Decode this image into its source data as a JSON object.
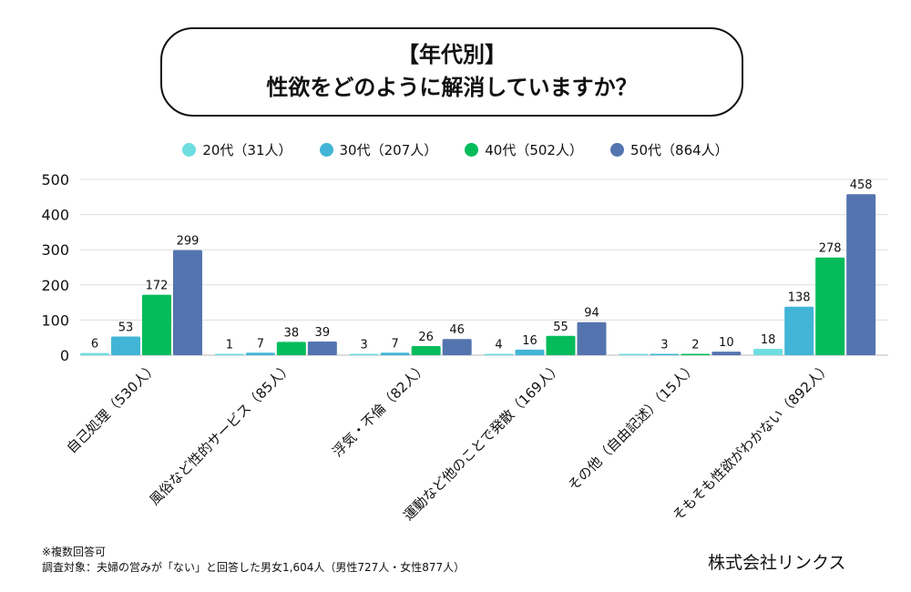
{
  "title": {
    "line1": "【年代別】",
    "line2": "性欲をどのように解消していますか？"
  },
  "chart_data": {
    "type": "bar",
    "categories": [
      "自己処理（530人）",
      "風俗など性的サービス（85人）",
      "浮気・不倫（82人）",
      "運動など他のことで発散（169人）",
      "その他（自由記述）（15人）",
      "そもそも性欲がわかない（892人）"
    ],
    "series": [
      {
        "name": "20代（31人）",
        "color": "#6fdde0",
        "values": [
          6,
          1,
          3,
          4,
          0,
          18
        ]
      },
      {
        "name": "30代（207人）",
        "color": "#42b5d6",
        "values": [
          53,
          7,
          7,
          16,
          3,
          138
        ]
      },
      {
        "name": "40代（502人）",
        "color": "#05bc5b",
        "values": [
          172,
          38,
          26,
          55,
          2,
          278
        ]
      },
      {
        "name": "50代（864人）",
        "color": "#5474af",
        "values": [
          299,
          39,
          46,
          94,
          10,
          458
        ]
      }
    ],
    "data_labels": [
      [
        "6",
        "53",
        "172",
        "299"
      ],
      [
        "1",
        "7",
        "38",
        "39"
      ],
      [
        "3",
        "7",
        "26",
        "46"
      ],
      [
        "4",
        "16",
        "55",
        "94"
      ],
      [
        "",
        "3",
        "2",
        "10"
      ],
      [
        "18",
        "138",
        "278",
        "458"
      ]
    ],
    "yticks": [
      "0",
      "100",
      "200",
      "300",
      "400",
      "500"
    ],
    "ylim": [
      0,
      500
    ],
    "grid": true,
    "legend": "top-center"
  },
  "footer": {
    "note1": "※複数回答可",
    "note2": "調査対象：夫婦の営みが「ない」と回答した男女1,604人（男性727人・女性877人）",
    "company": "株式会社リンクス"
  }
}
